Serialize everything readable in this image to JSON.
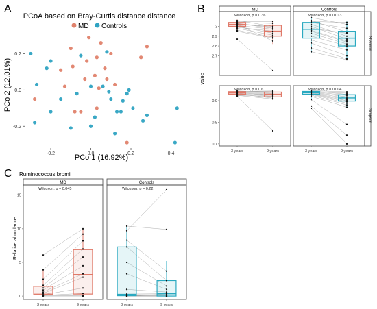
{
  "colors": {
    "md": "#e0826c",
    "controls": "#2fa3c2",
    "md_box": "#e07a6a",
    "controls_box": "#2aa9c0",
    "line": "#999999",
    "strip_bg": "#ffffff"
  },
  "panel_a": {
    "letter": "A",
    "title": "PCoA based on Bray-Curtis distance distance",
    "legend": [
      "MD",
      "Controls"
    ]
  },
  "panel_b": {
    "letter": "B",
    "strip_top": [
      "MD",
      "Controls"
    ],
    "strip_right": [
      "Shannon",
      "Simpson"
    ],
    "ylabel": "value",
    "xticks": [
      "3 years",
      "9 years"
    ],
    "stats": {
      "shannon_md": "Wilcoxon, p = 0.36",
      "shannon_controls": "Wilcoxon, p = 0.013",
      "simpson_md": "Wilcoxon, p = 0.6",
      "simpson_controls": "Wilcoxon, p = 0.004"
    }
  },
  "panel_c": {
    "letter": "C",
    "title": "Ruminococcus bromii",
    "strip_top": [
      "MD",
      "Controls"
    ],
    "ylabel": "Relative abundance",
    "xticks": [
      "3 years",
      "9 years"
    ],
    "stats": {
      "md": "Wilcoxon, p = 0.045",
      "controls": "Wilcoxon, p = 0.22"
    }
  },
  "chart_data": [
    {
      "type": "scatter",
      "title": "PCoA based on Bray-Curtis distance distance",
      "xlabel": "PCo 1 (16.92%)",
      "ylabel": "PCo 2 (12.01%)",
      "xlim": [
        -0.33,
        0.47
      ],
      "ylim": [
        -0.32,
        0.3
      ],
      "xticks": [
        -0.2,
        0.0,
        0.2,
        0.4
      ],
      "xtick_labels": [
        "-0.2",
        "0.0",
        "0.2",
        "0.4"
      ],
      "yticks": [
        -0.2,
        0.0,
        0.2
      ],
      "ytick_labels": [
        "-0.2",
        "0.0",
        "0.2"
      ],
      "legend_position": "top",
      "series": [
        {
          "name": "MD",
          "points": [
            [
              -0.01,
              0.29
            ],
            [
              0.05,
              0.26
            ],
            [
              0.1,
              0.2
            ],
            [
              0.28,
              0.24
            ],
            [
              -0.1,
              0.23
            ],
            [
              -0.03,
              0.06
            ],
            [
              0.03,
              0.18
            ],
            [
              0.08,
              0.06
            ],
            [
              -0.15,
              0.11
            ],
            [
              -0.09,
              0.13
            ],
            [
              0.02,
              0.08
            ],
            [
              0.04,
              0.01
            ],
            [
              -0.05,
              -0.12
            ],
            [
              -0.08,
              -0.12
            ],
            [
              0.12,
              0.03
            ],
            [
              -0.28,
              -0.05
            ],
            [
              -0.02,
              0.16
            ],
            [
              0.07,
              0.12
            ],
            [
              -0.13,
              0.02
            ],
            [
              0.18,
              -0.29
            ],
            [
              0.03,
              -0.1
            ],
            [
              0.25,
              0.18
            ]
          ]
        },
        {
          "name": "Controls",
          "points": [
            [
              -0.3,
              0.2
            ],
            [
              -0.2,
              0.16
            ],
            [
              -0.27,
              0.03
            ],
            [
              -0.05,
              0.19
            ],
            [
              0.0,
              0.02
            ],
            [
              0.06,
              0.02
            ],
            [
              0.09,
              -0.01
            ],
            [
              0.15,
              -0.12
            ],
            [
              0.18,
              -0.02
            ],
            [
              0.19,
              0.0
            ],
            [
              0.28,
              -0.14
            ],
            [
              0.26,
              -0.17
            ],
            [
              -0.07,
              -0.02
            ],
            [
              -0.15,
              -0.05
            ],
            [
              -0.2,
              -0.12
            ],
            [
              -0.28,
              -0.18
            ],
            [
              0.02,
              -0.15
            ],
            [
              0.1,
              -0.05
            ],
            [
              0.13,
              -0.12
            ],
            [
              0.21,
              -0.1
            ],
            [
              0.43,
              -0.1
            ],
            [
              0.42,
              -0.29
            ],
            [
              0.12,
              -0.24
            ],
            [
              -0.22,
              0.12
            ],
            [
              -0.1,
              -0.21
            ],
            [
              0.0,
              -0.2
            ],
            [
              0.08,
              0.21
            ],
            [
              0.16,
              -0.06
            ]
          ]
        }
      ]
    },
    {
      "type": "box",
      "title": "",
      "ylabel": "value",
      "facets": [
        {
          "index": "Shannon",
          "group": "MD",
          "ylim": [
            2.5,
            3.15
          ],
          "yticks": [
            2.7,
            2.8,
            2.9,
            3.0
          ],
          "stat": "Wilcoxon, p = 0.36",
          "boxes": [
            {
              "x": "3 years",
              "q1": 3.0,
              "median": 3.02,
              "q3": 3.04,
              "low": 2.95,
              "high": 3.07
            },
            {
              "x": "9 years",
              "q1": 2.9,
              "median": 2.95,
              "q3": 3.01,
              "low": 2.82,
              "high": 3.06
            }
          ],
          "points": [
            [
              3.06,
              3.0
            ],
            [
              3.03,
              2.98
            ],
            [
              3.02,
              2.85
            ],
            [
              3.01,
              2.97
            ],
            [
              3.0,
              2.93
            ],
            [
              2.98,
              2.91
            ],
            [
              2.96,
              2.89
            ],
            [
              3.04,
              3.03
            ],
            [
              3.05,
              3.05
            ],
            [
              3.02,
              3.0
            ],
            [
              2.99,
              2.95
            ],
            [
              3.03,
              2.99
            ],
            [
              2.95,
              2.88
            ],
            [
              2.87,
              2.55
            ]
          ]
        },
        {
          "index": "Shannon",
          "group": "Controls",
          "ylim": [
            2.5,
            3.15
          ],
          "yticks": [
            2.7,
            2.8,
            2.9,
            3.0
          ],
          "stat": "Wilcoxon, p = 0.013",
          "boxes": [
            {
              "x": "3 years",
              "q1": 2.88,
              "median": 2.97,
              "q3": 3.04,
              "low": 2.73,
              "high": 3.09
            },
            {
              "x": "9 years",
              "q1": 2.8,
              "median": 2.88,
              "q3": 2.95,
              "low": 2.66,
              "high": 3.05
            }
          ],
          "points": [
            [
              3.09,
              3.02
            ],
            [
              3.06,
              2.94
            ],
            [
              3.04,
              2.98
            ],
            [
              3.02,
              2.9
            ],
            [
              3.0,
              2.87
            ],
            [
              2.98,
              2.93
            ],
            [
              2.96,
              2.85
            ],
            [
              2.93,
              2.82
            ],
            [
              2.9,
              2.8
            ],
            [
              2.86,
              2.76
            ],
            [
              2.83,
              2.7
            ],
            [
              2.78,
              2.67
            ],
            [
              2.74,
              2.66
            ],
            [
              3.05,
              3.04
            ],
            [
              2.95,
              2.84
            ]
          ]
        },
        {
          "index": "Simpson",
          "group": "MD",
          "ylim": [
            0.69,
            0.97
          ],
          "yticks": [
            0.7,
            0.8,
            0.9
          ],
          "stat": "Wilcoxon, p = 0.6",
          "boxes": [
            {
              "x": "3 years",
              "q1": 0.93,
              "median": 0.936,
              "q3": 0.942,
              "low": 0.92,
              "high": 0.946
            },
            {
              "x": "9 years",
              "q1": 0.918,
              "median": 0.93,
              "q3": 0.94,
              "low": 0.905,
              "high": 0.946
            }
          ],
          "points": [
            [
              0.945,
              0.94
            ],
            [
              0.943,
              0.945
            ],
            [
              0.94,
              0.935
            ],
            [
              0.938,
              0.93
            ],
            [
              0.936,
              0.926
            ],
            [
              0.934,
              0.92
            ],
            [
              0.932,
              0.912
            ],
            [
              0.93,
              0.925
            ],
            [
              0.928,
              0.918
            ],
            [
              0.925,
              0.908
            ],
            [
              0.922,
              0.935
            ],
            [
              0.944,
              0.942
            ],
            [
              0.921,
              0.76
            ]
          ]
        },
        {
          "index": "Simpson",
          "group": "Controls",
          "ylim": [
            0.69,
            0.97
          ],
          "yticks": [
            0.7,
            0.8,
            0.9
          ],
          "stat": "Wilcoxon, p = 0.004",
          "boxes": [
            {
              "x": "3 years",
              "q1": 0.93,
              "median": 0.937,
              "q3": 0.943,
              "low": 0.905,
              "high": 0.947
            },
            {
              "x": "9 years",
              "q1": 0.898,
              "median": 0.913,
              "q3": 0.928,
              "low": 0.87,
              "high": 0.942
            }
          ],
          "points": [
            [
              0.947,
              0.941
            ],
            [
              0.945,
              0.93
            ],
            [
              0.942,
              0.925
            ],
            [
              0.94,
              0.918
            ],
            [
              0.938,
              0.912
            ],
            [
              0.936,
              0.905
            ],
            [
              0.934,
              0.9
            ],
            [
              0.932,
              0.895
            ],
            [
              0.93,
              0.888
            ],
            [
              0.926,
              0.88
            ],
            [
              0.92,
              0.87
            ],
            [
              0.905,
              0.79
            ],
            [
              0.875,
              0.74
            ],
            [
              0.865,
              0.7
            ],
            [
              0.944,
              0.935
            ]
          ]
        }
      ]
    },
    {
      "type": "box",
      "title": "Ruminococcus bromii",
      "ylabel": "Relative abundance",
      "ylim": [
        -0.5,
        16.5
      ],
      "yticks": [
        0,
        5,
        10,
        15
      ],
      "facets": [
        {
          "group": "MD",
          "stat": "Wilcoxon, p = 0.045",
          "boxes": [
            {
              "x": "3 years",
              "q1": 0.25,
              "median": 0.45,
              "q3": 1.45,
              "low": 0.0,
              "high": 3.9
            },
            {
              "x": "9 years",
              "q1": 0.3,
              "median": 3.2,
              "q3": 6.9,
              "low": 0.0,
              "high": 10.0
            }
          ],
          "points": [
            [
              6.1,
              10.0
            ],
            [
              3.9,
              9.2
            ],
            [
              2.5,
              8.2
            ],
            [
              1.6,
              7.0
            ],
            [
              1.2,
              5.8
            ],
            [
              0.9,
              4.5
            ],
            [
              0.6,
              3.3
            ],
            [
              0.4,
              2.8
            ],
            [
              0.2,
              1.2
            ],
            [
              0.1,
              0.4
            ],
            [
              0.05,
              0.1
            ],
            [
              0.0,
              0.0
            ]
          ]
        },
        {
          "group": "Controls",
          "stat": "Wilcoxon, p = 0.22",
          "boxes": [
            {
              "x": "3 years",
              "q1": 0.05,
              "median": 0.25,
              "q3": 7.3,
              "low": 0.0,
              "high": 10.4
            },
            {
              "x": "9 years",
              "q1": 0.0,
              "median": 0.35,
              "q3": 2.3,
              "low": 0.0,
              "high": 5.2
            }
          ],
          "points": [
            [
              10.4,
              9.9
            ],
            [
              9.7,
              15.8
            ],
            [
              8.3,
              3.7
            ],
            [
              7.3,
              2.3
            ],
            [
              5.0,
              1.5
            ],
            [
              3.3,
              1.0
            ],
            [
              1.0,
              0.6
            ],
            [
              0.3,
              0.35
            ],
            [
              0.2,
              0.2
            ],
            [
              0.1,
              0.1
            ],
            [
              0.05,
              0.0
            ],
            [
              0.0,
              0.0
            ],
            [
              0.0,
              0.3
            ],
            [
              0.0,
              0.0
            ]
          ]
        }
      ]
    }
  ]
}
